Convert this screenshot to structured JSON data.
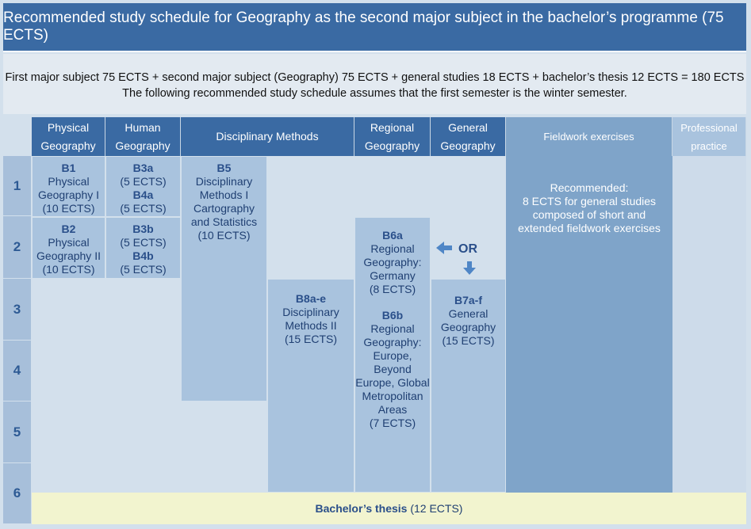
{
  "title": "Recommended study schedule for Geography as the second major subject in the bachelor’s programme (75 ECTS)",
  "intro": [
    "First major subject 75 ECTS + second major subject (Geography) 75 ECTS + general studies 18 ECTS + bachelor’s thesis 12 ECTS = 180 ECTS",
    "The following recommended study schedule assumes that the first semester is the winter semester."
  ],
  "columns": [
    [
      "Physical",
      "Geography"
    ],
    [
      "Human",
      "Geography"
    ],
    [
      "Disciplinary Methods"
    ],
    [
      "Regional",
      "Geography"
    ],
    [
      "General",
      "Geography"
    ],
    [
      "Fieldwork exercises"
    ],
    [
      "Professional",
      "practice"
    ]
  ],
  "semesters": [
    1,
    2,
    3,
    4,
    5,
    6
  ],
  "modules": [
    {
      "entries": [
        {
          "code": "B1",
          "lines": [
            "Physical",
            "Geography I",
            "(10 ECTS)"
          ]
        }
      ]
    },
    {
      "entries": [
        {
          "code": "B3a",
          "lines": [
            "(5 ECTS)"
          ]
        },
        {
          "code": "B4a",
          "lines": [
            "(5 ECTS)"
          ]
        }
      ]
    },
    {
      "entries": [
        {
          "code": "B2",
          "lines": [
            "Physical",
            "Geography II",
            "(10 ECTS)"
          ]
        }
      ]
    },
    {
      "entries": [
        {
          "code": "B3b",
          "lines": [
            "(5 ECTS)"
          ]
        },
        {
          "code": "B4b",
          "lines": [
            "(5 ECTS)"
          ]
        }
      ]
    },
    {
      "entries": [
        {
          "code": "B5",
          "lines": [
            "Disciplinary",
            "Methods I",
            "Cartography",
            "and Statistics",
            "(10 ECTS)"
          ]
        }
      ]
    },
    {
      "entries": [
        {
          "code": "B8a-e",
          "lines": [
            "Disciplinary",
            "Methods II",
            "(15 ECTS)"
          ]
        }
      ]
    },
    {
      "entries": [
        {
          "code": "B6a",
          "lines": [
            "Regional",
            "Geography:",
            "Germany",
            "(8 ECTS)"
          ]
        },
        {
          "code": "B6b",
          "lines": [
            "Regional",
            "Geography:",
            "Europe,",
            "Beyond",
            "Europe, Global",
            "Metropolitan",
            "Areas",
            "(7 ECTS)"
          ]
        }
      ]
    },
    {
      "entries": [
        {
          "code": "B7a-f",
          "lines": [
            "General",
            "Geography",
            "(15 ECTS)"
          ]
        }
      ]
    },
    {
      "entries": [
        {
          "code": "Recommended:",
          "lines": [
            "8 ECTS for general studies",
            "composed of short and",
            "extended fieldwork exercises"
          ]
        }
      ]
    }
  ],
  "or_label": "OR",
  "thesis": {
    "code": "Bachelor’s thesis",
    "text": "(12 ECTS)"
  }
}
